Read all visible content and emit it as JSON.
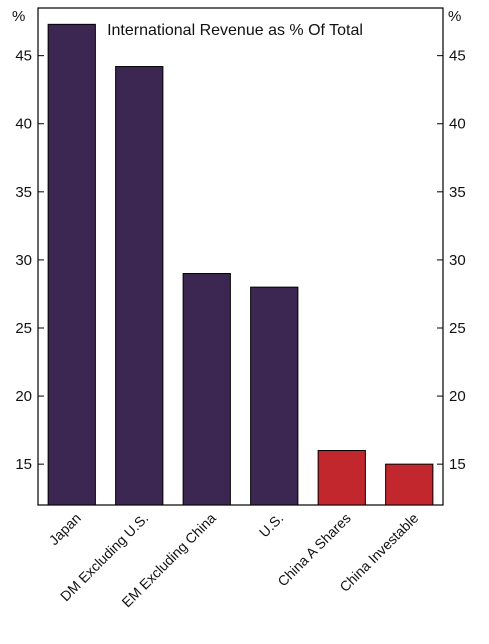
{
  "chart_data": {
    "type": "bar",
    "title": "International Revenue as % Of Total",
    "unit_left": "%",
    "unit_right": "%",
    "categories": [
      "Japan",
      "DM Excluding U.S.",
      "EM Excluding China",
      "U.S.",
      "China A Shares",
      "China Investable"
    ],
    "values": [
      47.3,
      44.2,
      29.0,
      28.0,
      16.0,
      15.0
    ],
    "bar_colors": [
      "#3b2751",
      "#3b2751",
      "#3b2751",
      "#3b2751",
      "#c1272d",
      "#c1272d"
    ],
    "ylim": [
      12,
      48.5
    ],
    "yticks": [
      15,
      20,
      25,
      30,
      35,
      40,
      45
    ],
    "grid": false,
    "legend": "none"
  }
}
